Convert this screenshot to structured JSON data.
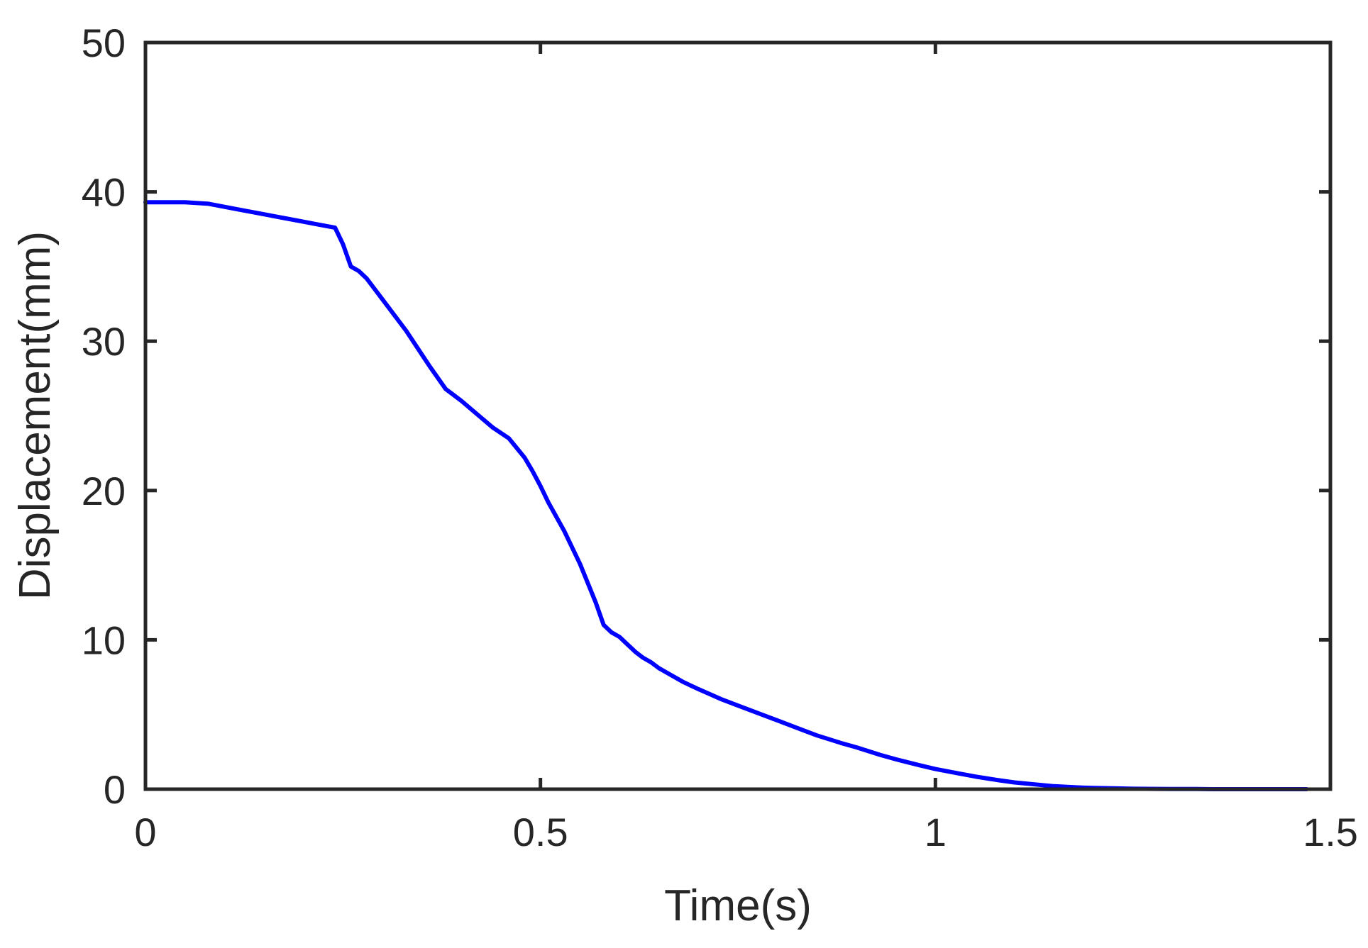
{
  "chart_data": {
    "type": "line",
    "title": "",
    "xlabel": "Time(s)",
    "ylabel": "Displacement(mm)",
    "xlim": [
      0,
      1.5
    ],
    "ylim": [
      0,
      50
    ],
    "x_ticks": [
      0,
      0.5,
      1,
      1.5
    ],
    "x_tick_labels": [
      "0",
      "0.5",
      "1",
      "1.5"
    ],
    "y_ticks": [
      0,
      10,
      20,
      30,
      40,
      50
    ],
    "y_tick_labels": [
      "0",
      "10",
      "20",
      "30",
      "40",
      "50"
    ],
    "grid": false,
    "legend": "none",
    "colors": {
      "series": "#0000ff",
      "axes": "#262626",
      "background": "#ffffff"
    },
    "series": [
      {
        "x": [
          0,
          0.02,
          0.05,
          0.08,
          0.1,
          0.12,
          0.15,
          0.18,
          0.2,
          0.22,
          0.24,
          0.25,
          0.26,
          0.27,
          0.28,
          0.29,
          0.3,
          0.33,
          0.36,
          0.38,
          0.4,
          0.42,
          0.44,
          0.46,
          0.48,
          0.49,
          0.5,
          0.51,
          0.53,
          0.55,
          0.57,
          0.58,
          0.59,
          0.6,
          0.61,
          0.62,
          0.63,
          0.64,
          0.65,
          0.68,
          0.7,
          0.73,
          0.75,
          0.78,
          0.8,
          0.83,
          0.85,
          0.88,
          0.9,
          0.93,
          0.95,
          0.98,
          1.0,
          1.03,
          1.05,
          1.08,
          1.1,
          1.13,
          1.15,
          1.18,
          1.2,
          1.23,
          1.25,
          1.28,
          1.3,
          1.33,
          1.35,
          1.38,
          1.4,
          1.43,
          1.45,
          1.47
        ],
        "y": [
          39.3,
          39.3,
          39.3,
          39.2,
          39.0,
          38.8,
          38.5,
          38.2,
          38.0,
          37.8,
          37.6,
          36.5,
          35.0,
          34.7,
          34.2,
          33.5,
          32.8,
          30.7,
          28.3,
          26.8,
          26.0,
          25.1,
          24.2,
          23.5,
          22.2,
          21.3,
          20.3,
          19.2,
          17.3,
          15.1,
          12.5,
          11.0,
          10.5,
          10.2,
          9.7,
          9.2,
          8.8,
          8.5,
          8.1,
          7.2,
          6.7,
          6.0,
          5.6,
          5.0,
          4.6,
          4.0,
          3.6,
          3.1,
          2.8,
          2.3,
          2.0,
          1.6,
          1.35,
          1.05,
          0.85,
          0.6,
          0.45,
          0.3,
          0.2,
          0.12,
          0.08,
          0.05,
          0.03,
          0.02,
          0.01,
          0.01,
          0.0,
          0.0,
          0.0,
          0.0,
          0.0,
          0.0
        ]
      }
    ]
  }
}
